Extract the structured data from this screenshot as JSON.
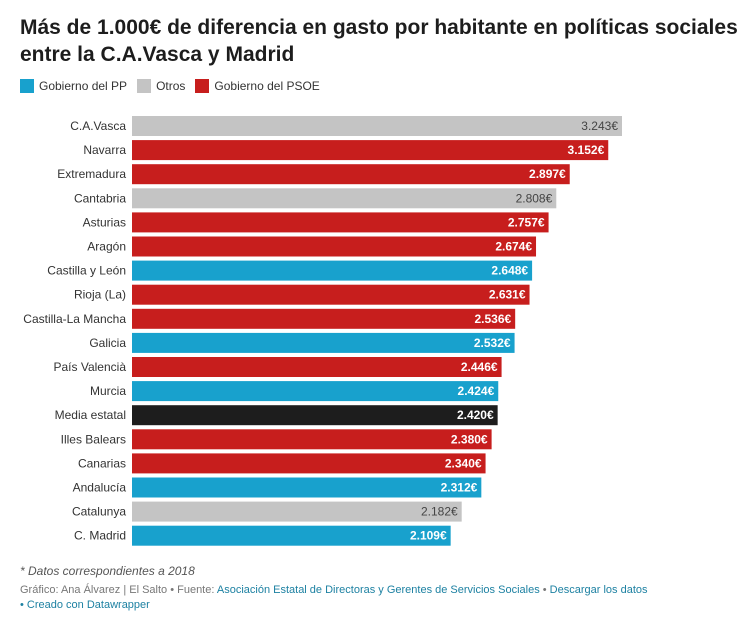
{
  "title": "Más de 1.000€ de diferencia en gasto por habitante en políticas sociales entre la C.A.Vasca y Madrid",
  "legend": [
    {
      "label": "Gobierno del PP",
      "color": "#18a1cd"
    },
    {
      "label": "Otros",
      "color": "#c4c4c4"
    },
    {
      "label": "Gobierno del PSOE",
      "color": "#c71e1d"
    }
  ],
  "colors": {
    "PP": "#18a1cd",
    "Otros": "#c4c4c4",
    "PSOE": "#c71e1d",
    "Media": "#1d1d1d"
  },
  "chart_data": {
    "type": "bar",
    "orientation": "horizontal",
    "title": "Más de 1.000€ de diferencia en gasto por habitante en políticas sociales entre la C.A.Vasca y Madrid",
    "legend_position": "top-left",
    "grid": false,
    "xlim": [
      0,
      3243
    ],
    "bars": [
      {
        "label": "C.A.Vasca",
        "value": 3243,
        "display": "3.243€",
        "group": "Otros"
      },
      {
        "label": "Navarra",
        "value": 3152,
        "display": "3.152€",
        "group": "PSOE"
      },
      {
        "label": "Extremadura",
        "value": 2897,
        "display": "2.897€",
        "group": "PSOE"
      },
      {
        "label": "Cantabria",
        "value": 2808,
        "display": "2.808€",
        "group": "Otros"
      },
      {
        "label": "Asturias",
        "value": 2757,
        "display": "2.757€",
        "group": "PSOE"
      },
      {
        "label": "Aragón",
        "value": 2674,
        "display": "2.674€",
        "group": "PSOE"
      },
      {
        "label": "Castilla y León",
        "value": 2648,
        "display": "2.648€",
        "group": "PP"
      },
      {
        "label": "Rioja (La)",
        "value": 2631,
        "display": "2.631€",
        "group": "PSOE"
      },
      {
        "label": "Castilla-La Mancha",
        "value": 2536,
        "display": "2.536€",
        "group": "PSOE"
      },
      {
        "label": "Galicia",
        "value": 2532,
        "display": "2.532€",
        "group": "PP"
      },
      {
        "label": "País Valencià",
        "value": 2446,
        "display": "2.446€",
        "group": "PSOE"
      },
      {
        "label": "Murcia",
        "value": 2424,
        "display": "2.424€",
        "group": "PP"
      },
      {
        "label": "Media estatal",
        "value": 2420,
        "display": "2.420€",
        "group": "Media"
      },
      {
        "label": "Illes Balears",
        "value": 2380,
        "display": "2.380€",
        "group": "PSOE"
      },
      {
        "label": "Canarias",
        "value": 2340,
        "display": "2.340€",
        "group": "PSOE"
      },
      {
        "label": "Andalucía",
        "value": 2312,
        "display": "2.312€",
        "group": "PP"
      },
      {
        "label": "Catalunya",
        "value": 2182,
        "display": "2.182€",
        "group": "Otros"
      },
      {
        "label": "C. Madrid",
        "value": 2109,
        "display": "2.109€",
        "group": "PP"
      }
    ]
  },
  "footer": {
    "note": "* Datos correspondientes a 2018",
    "credit": "Gráfico: Ana Álvarez | El Salto • Fuente: ",
    "source_link": "Asociación Estatal de Directoras y Gerentes de Servicios Sociales",
    "separator": " • ",
    "download_link": "Descargar los datos",
    "created_prefix": "• ",
    "created_link": "Creado con Datawrapper"
  }
}
